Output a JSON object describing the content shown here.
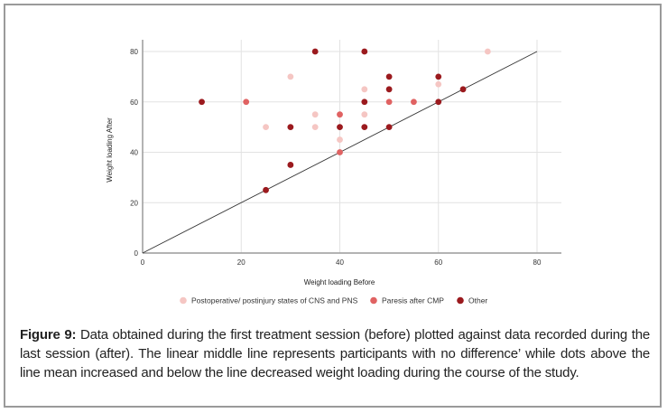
{
  "chart_data": {
    "type": "scatter",
    "title": "",
    "xlabel": "Weight loading Before",
    "ylabel": "Weight loading After",
    "xlim": [
      0,
      85
    ],
    "ylim": [
      0,
      85
    ],
    "xticks": [
      0,
      20,
      40,
      60,
      80
    ],
    "yticks": [
      0,
      20,
      40,
      60,
      80
    ],
    "grid": true,
    "legend_position": "bottom",
    "reference_line": {
      "label": "no difference (y = x)",
      "from": [
        0,
        0
      ],
      "to": [
        80,
        80
      ],
      "color": "#333333"
    },
    "series": [
      {
        "name": "Postoperative/ postinjury states of CNS and PNS",
        "color": "#f5c6c3",
        "points": [
          [
            25,
            50
          ],
          [
            30,
            70
          ],
          [
            35,
            55
          ],
          [
            35,
            50
          ],
          [
            40,
            45
          ],
          [
            45,
            65
          ],
          [
            45,
            55
          ],
          [
            60,
            67
          ],
          [
            70,
            80
          ]
        ]
      },
      {
        "name": "Paresis after CMP",
        "color": "#e06262",
        "points": [
          [
            21,
            60
          ],
          [
            40,
            55
          ],
          [
            40,
            40
          ],
          [
            50,
            60
          ],
          [
            55,
            60
          ]
        ]
      },
      {
        "name": "Other",
        "color": "#9b1a1e",
        "points": [
          [
            12,
            60
          ],
          [
            25,
            25
          ],
          [
            30,
            50
          ],
          [
            30,
            35
          ],
          [
            35,
            80
          ],
          [
            40,
            50
          ],
          [
            45,
            80
          ],
          [
            45,
            60
          ],
          [
            45,
            50
          ],
          [
            50,
            70
          ],
          [
            50,
            65
          ],
          [
            50,
            50
          ],
          [
            60,
            70
          ],
          [
            60,
            60
          ],
          [
            65,
            65
          ]
        ]
      }
    ]
  },
  "caption": {
    "label": "Figure 9:",
    "text": " Data obtained during the first treatment session (before) plotted against data recorded during the last session (after). The linear middle line represents participants with no difference’ while dots above the line mean increased and below the line decreased weight loading during the course of the study."
  }
}
